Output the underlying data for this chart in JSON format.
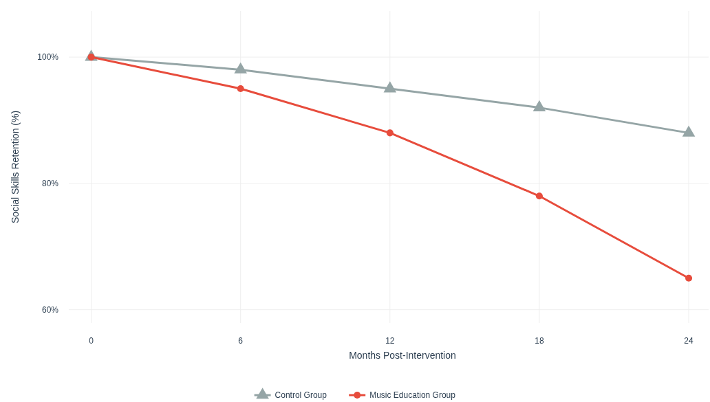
{
  "chart_data": {
    "type": "line",
    "xlabel": "Months Post-Intervention",
    "ylabel": "Social Skills Retention (%)",
    "x": [
      0,
      6,
      12,
      18,
      24
    ],
    "series": [
      {
        "name": "Control Group",
        "color": "#95a5a6",
        "marker": "triangle",
        "values": [
          100,
          98,
          95,
          92,
          88
        ]
      },
      {
        "name": "Music Education Group",
        "color": "#e74c3c",
        "marker": "circle",
        "values": [
          100,
          95,
          88,
          78,
          65
        ]
      }
    ],
    "xlim": [
      -0.9,
      24.8
    ],
    "xticks": [
      0,
      6,
      12,
      18,
      24
    ],
    "ylim": [
      57.9,
      107.3
    ],
    "yticks": [
      {
        "value": 60,
        "label": "60%"
      },
      {
        "value": 80,
        "label": "80%"
      },
      {
        "value": 100,
        "label": "100%"
      }
    ],
    "grid": true,
    "legend": "bottom",
    "line_style": "solid"
  }
}
